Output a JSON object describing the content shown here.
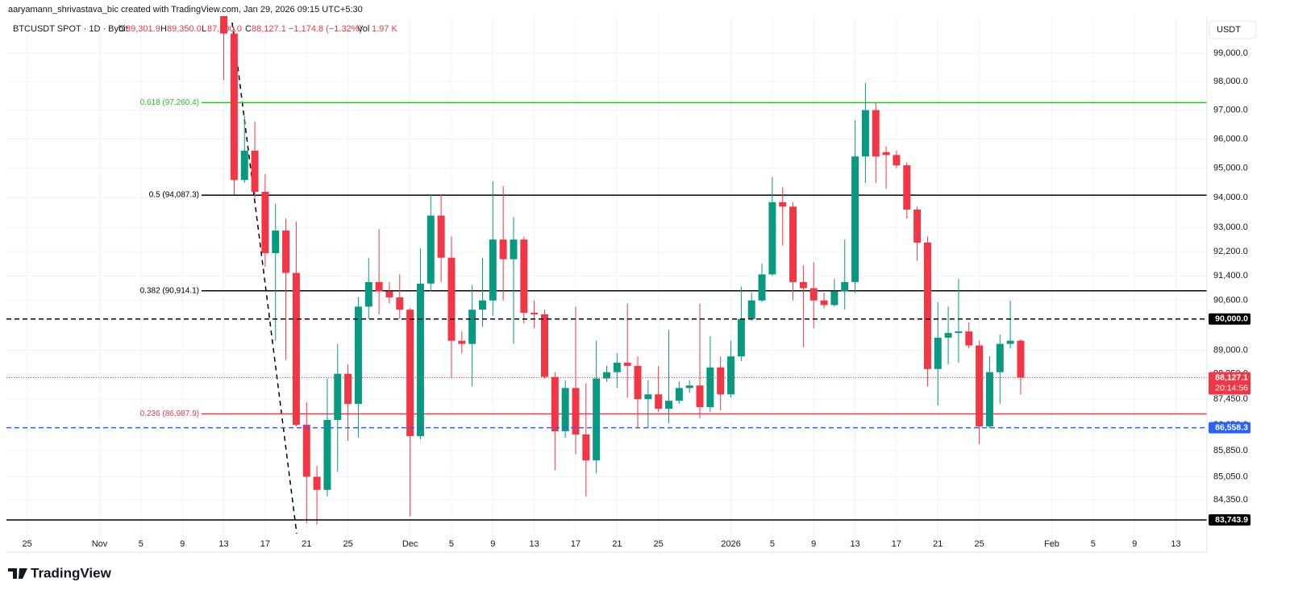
{
  "header": {
    "text": "aaryamann_shrivastava_bic created with TradingView.com, Jan 29, 2026 09:15 UTC+5:30"
  },
  "legend": {
    "symbol": "BTCUSDT SPOT · 1D · Bybit",
    "o": "O",
    "open": "89,301.9",
    "h": "H",
    "high": "89,350.0",
    "l": "L",
    "low": "87,600.0",
    "c": "C",
    "close": "88,127.1",
    "change": "−1,174.8 (−1.32%)",
    "vol": "Vol",
    "volume": "1.97 K"
  },
  "currency": "USDT",
  "footer": {
    "brand": "TradingView"
  },
  "chart_data": {
    "type": "candlestick",
    "log_scale": true,
    "grid": true,
    "up_color": "#089981",
    "down_color": "#f23645",
    "xlim": [
      "2025-10-23",
      "2026-02-16"
    ],
    "ylim": [
      82781,
      100325
    ],
    "x": [
      "2025-11-13",
      "2025-11-14",
      "2025-11-15",
      "2025-11-16",
      "2025-11-17",
      "2025-11-18",
      "2025-11-19",
      "2025-11-20",
      "2025-11-21",
      "2025-11-22",
      "2025-11-23",
      "2025-11-24",
      "2025-11-25",
      "2025-11-26",
      "2025-11-27",
      "2025-11-28",
      "2025-11-29",
      "2025-11-30",
      "2025-12-01",
      "2025-12-02",
      "2025-12-03",
      "2025-12-04",
      "2025-12-05",
      "2025-12-06",
      "2025-12-07",
      "2025-12-08",
      "2025-12-09",
      "2025-12-10",
      "2025-12-11",
      "2025-12-12",
      "2025-12-13",
      "2025-12-14",
      "2025-12-15",
      "2025-12-16",
      "2025-12-17",
      "2025-12-18",
      "2025-12-19",
      "2025-12-20",
      "2025-12-21",
      "2025-12-22",
      "2025-12-23",
      "2025-12-24",
      "2025-12-25",
      "2025-12-26",
      "2025-12-27",
      "2025-12-28",
      "2025-12-29",
      "2025-12-30",
      "2025-12-31",
      "2026-01-01",
      "2026-01-02",
      "2026-01-03",
      "2026-01-04",
      "2026-01-05",
      "2026-01-06",
      "2026-01-07",
      "2026-01-08",
      "2026-01-09",
      "2026-01-10",
      "2026-01-11",
      "2026-01-12",
      "2026-01-13",
      "2026-01-14",
      "2026-01-15",
      "2026-01-16",
      "2026-01-17",
      "2026-01-18",
      "2026-01-19",
      "2026-01-20",
      "2026-01-21",
      "2026-01-22",
      "2026-01-23",
      "2026-01-24",
      "2026-01-25",
      "2026-01-26",
      "2026-01-27",
      "2026-01-28",
      "2026-01-29"
    ],
    "open": [
      101500,
      99700,
      94600,
      95600,
      94200,
      92150,
      92900,
      91500,
      86650,
      85050,
      84650,
      86800,
      88250,
      87300,
      90400,
      91200,
      90900,
      90700,
      90300,
      86300,
      91150,
      93400,
      92000,
      89300,
      89200,
      90300,
      90600,
      92600,
      91950,
      92600,
      90200,
      90150,
      88150,
      86450,
      87800,
      86350,
      85550,
      88100,
      88300,
      88600,
      88500,
      87450,
      87600,
      87150,
      87400,
      87800,
      87880,
      87200,
      88450,
      87600,
      88800,
      90000,
      90600,
      91450,
      93850,
      93700,
      91200,
      91000,
      90600,
      90450,
      90900,
      91200,
      95400,
      97000,
      95550,
      95450,
      95100,
      93600,
      92500,
      88400,
      89400,
      89550,
      89600,
      89150,
      86600,
      88300,
      89200,
      89301.9
    ],
    "high": [
      102500,
      99900,
      96800,
      96600,
      94800,
      93800,
      93300,
      93200,
      87350,
      85380,
      88100,
      89200,
      88550,
      90700,
      92000,
      92950,
      91200,
      91450,
      90350,
      92300,
      94100,
      94100,
      92700,
      89600,
      91100,
      92000,
      94550,
      94400,
      93350,
      92700,
      90600,
      90300,
      88300,
      88050,
      90400,
      87950,
      89300,
      88500,
      88900,
      90500,
      88800,
      88050,
      88500,
      89650,
      88000,
      88050,
      90500,
      89450,
      88800,
      89300,
      91050,
      90850,
      91800,
      94700,
      94350,
      93850,
      91750,
      91850,
      90850,
      91300,
      92600,
      96650,
      97950,
      97250,
      95750,
      95600,
      95200,
      93700,
      92700,
      90550,
      90400,
      91300,
      89900,
      89300,
      88800,
      89500,
      90600,
      89350
    ],
    "low": [
      98050,
      94100,
      94500,
      94000,
      91700,
      89300,
      88700,
      86600,
      83650,
      83600,
      84450,
      85200,
      86150,
      86250,
      90000,
      90150,
      90500,
      90000,
      83850,
      86200,
      90900,
      91200,
      88100,
      88900,
      87850,
      89750,
      90100,
      90600,
      89200,
      89850,
      89700,
      88100,
      85250,
      86250,
      85750,
      84450,
      85150,
      88000,
      87800,
      87500,
      86550,
      86550,
      87050,
      86700,
      87300,
      87650,
      86850,
      87050,
      87100,
      87500,
      88650,
      89950,
      90550,
      91400,
      92400,
      90600,
      89100,
      89700,
      90350,
      90400,
      90300,
      90850,
      94500,
      94500,
      94300,
      95000,
      93300,
      91900,
      87850,
      87250,
      88550,
      88600,
      89050,
      86050,
      86550,
      87300,
      89050,
      87600
    ],
    "close": [
      99700,
      94600,
      95600,
      94200,
      92150,
      92900,
      91500,
      86650,
      85050,
      84650,
      86800,
      88250,
      87300,
      90400,
      91200,
      90900,
      90700,
      90300,
      86300,
      91150,
      93400,
      92000,
      89300,
      89200,
      90300,
      90600,
      92600,
      91950,
      92600,
      90200,
      90150,
      88150,
      86450,
      87800,
      86350,
      85550,
      88100,
      88300,
      88600,
      88500,
      87450,
      87600,
      87150,
      87400,
      87800,
      87880,
      87200,
      88450,
      87600,
      88800,
      90000,
      90600,
      91450,
      93850,
      93700,
      91200,
      91000,
      90600,
      90450,
      90900,
      91200,
      95400,
      97000,
      95400,
      95450,
      95100,
      93600,
      92500,
      88400,
      89400,
      89550,
      89600,
      89150,
      86600,
      88300,
      89200,
      89301.9,
      88127.1
    ],
    "yticks": [
      {
        "value": 99000,
        "label": "99,000.0"
      },
      {
        "value": 98000,
        "label": "98,000.0"
      },
      {
        "value": 97000,
        "label": "97,000.0"
      },
      {
        "value": 96000,
        "label": "96,000.0"
      },
      {
        "value": 95000,
        "label": "95,000.0"
      },
      {
        "value": 94000,
        "label": "94,000.0"
      },
      {
        "value": 93000,
        "label": "93,000.0"
      },
      {
        "value": 92200,
        "label": "92,200.0"
      },
      {
        "value": 91400,
        "label": "91,400.0"
      },
      {
        "value": 90600,
        "label": "90,600.0"
      },
      {
        "value": 89000,
        "label": "89,000.0"
      },
      {
        "value": 88250,
        "label": "88,250.0"
      },
      {
        "value": 87450,
        "label": "87,450.0"
      },
      {
        "value": 86650,
        "label": "86,650.0"
      },
      {
        "value": 85850,
        "label": "85,850.0"
      },
      {
        "value": 85050,
        "label": "85,050.0"
      },
      {
        "value": 84350,
        "label": "84,350.0"
      }
    ],
    "xticks": [
      {
        "value": "2025-10-25",
        "label": "25"
      },
      {
        "value": "2025-11-01",
        "label": "Nov"
      },
      {
        "value": "2025-11-05",
        "label": "5"
      },
      {
        "value": "2025-11-09",
        "label": "9"
      },
      {
        "value": "2025-11-13",
        "label": "13"
      },
      {
        "value": "2025-11-17",
        "label": "17"
      },
      {
        "value": "2025-11-21",
        "label": "21"
      },
      {
        "value": "2025-11-25",
        "label": "25"
      },
      {
        "value": "2025-12-01",
        "label": "Dec"
      },
      {
        "value": "2025-12-05",
        "label": "5"
      },
      {
        "value": "2025-12-09",
        "label": "9"
      },
      {
        "value": "2025-12-13",
        "label": "13"
      },
      {
        "value": "2025-12-17",
        "label": "17"
      },
      {
        "value": "2025-12-21",
        "label": "21"
      },
      {
        "value": "2025-12-25",
        "label": "25"
      },
      {
        "value": "2026-01-01",
        "label": "2026"
      },
      {
        "value": "2026-01-05",
        "label": "5"
      },
      {
        "value": "2026-01-09",
        "label": "9"
      },
      {
        "value": "2026-01-13",
        "label": "13"
      },
      {
        "value": "2026-01-17",
        "label": "17"
      },
      {
        "value": "2026-01-21",
        "label": "21"
      },
      {
        "value": "2026-01-25",
        "label": "25"
      },
      {
        "value": "2026-02-01",
        "label": "Feb"
      },
      {
        "value": "2026-02-05",
        "label": "5"
      },
      {
        "value": "2026-02-09",
        "label": "9"
      },
      {
        "value": "2026-02-13",
        "label": "13"
      }
    ],
    "fib_levels": [
      {
        "label": "0.618 (97,260.4)",
        "value": 97260.4,
        "color": "#22c322"
      },
      {
        "label": "0.5 (94,087.3)",
        "value": 94087.3,
        "color": "#000000"
      },
      {
        "label": "0.382 (90,914.1)",
        "value": 90914.1,
        "color": "#000000"
      },
      {
        "label": "0.236 (86,987.9)",
        "value": 86987.9,
        "color": "#f23645"
      }
    ],
    "price_lines": [
      {
        "value": 90000,
        "label": "90,000.0",
        "color": "#000000",
        "style": "dashed"
      },
      {
        "value": 86558.3,
        "label": "86,558.3",
        "color": "#2962ff",
        "style": "dashed"
      },
      {
        "value": 83743.9,
        "label": "83,743.9",
        "color": "#000000",
        "style": "solid"
      },
      {
        "value": 88127.1,
        "label": "88,127.1",
        "color": "#f23645",
        "style": "dotted",
        "countdown": "20:14:56"
      }
    ]
  }
}
